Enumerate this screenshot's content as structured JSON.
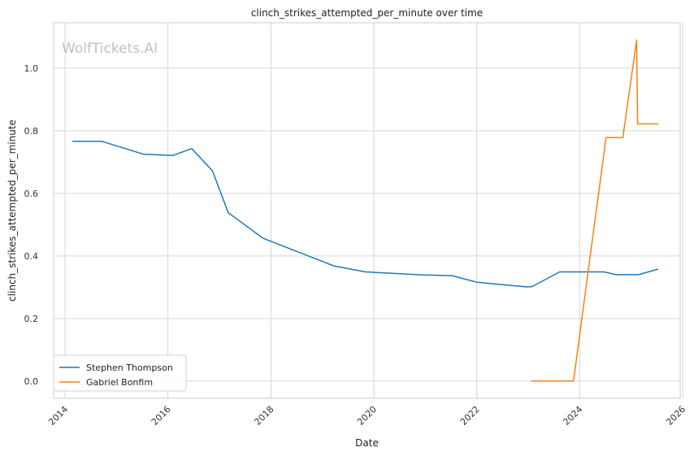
{
  "chart_data": {
    "type": "line",
    "title": "clinch_strikes_attempted_per_minute over time",
    "xlabel": "Date",
    "ylabel": "clinch_strikes_attempted_per_minute",
    "watermark": "WolfTickets.AI",
    "xlim": [
      "2013-10-12",
      "2025-12-14"
    ],
    "ylim": [
      -0.055,
      1.145
    ],
    "x_ticks": [
      "2014-01-01",
      "2016-01-01",
      "2018-01-01",
      "2020-01-01",
      "2022-01-01",
      "2024-01-01",
      "2026-01-01"
    ],
    "x_tick_labels": [
      "2014",
      "2016",
      "2018",
      "2020",
      "2022",
      "2024",
      "2026"
    ],
    "y_ticks": [
      0.0,
      0.2,
      0.4,
      0.6,
      0.8,
      1.0
    ],
    "y_tick_labels": [
      "0.0",
      "0.2",
      "0.4",
      "0.6",
      "0.8",
      "1.0"
    ],
    "grid": true,
    "legend_position": "lower-left",
    "series": [
      {
        "name": "Stephen Thompson",
        "color": "#1f77b4",
        "points": [
          {
            "x": "2014-02-22",
            "y": 0.766
          },
          {
            "x": "2014-09-20",
            "y": 0.766
          },
          {
            "x": "2015-07-11",
            "y": 0.725
          },
          {
            "x": "2016-02-06",
            "y": 0.721
          },
          {
            "x": "2016-06-18",
            "y": 0.743
          },
          {
            "x": "2016-11-12",
            "y": 0.672
          },
          {
            "x": "2017-03-04",
            "y": 0.538
          },
          {
            "x": "2017-11-04",
            "y": 0.457
          },
          {
            "x": "2019-03-23",
            "y": 0.368
          },
          {
            "x": "2019-11-02",
            "y": 0.349
          },
          {
            "x": "2020-12-19",
            "y": 0.339
          },
          {
            "x": "2021-07-10",
            "y": 0.337
          },
          {
            "x": "2022-01-01",
            "y": 0.316
          },
          {
            "x": "2022-12-17",
            "y": 0.301
          },
          {
            "x": "2023-01-28",
            "y": 0.302
          },
          {
            "x": "2023-08-12",
            "y": 0.349
          },
          {
            "x": "2024-06-22",
            "y": 0.349
          },
          {
            "x": "2024-09-14",
            "y": 0.34
          },
          {
            "x": "2025-02-22",
            "y": 0.34
          },
          {
            "x": "2025-07-12",
            "y": 0.358
          }
        ]
      },
      {
        "name": "Gabriel Bonfim",
        "color": "#ff7f0e",
        "points": [
          {
            "x": "2023-01-21",
            "y": 0.0
          },
          {
            "x": "2023-11-18",
            "y": 0.0
          },
          {
            "x": "2024-07-06",
            "y": 0.778
          },
          {
            "x": "2024-11-02",
            "y": 0.778
          },
          {
            "x": "2025-02-08",
            "y": 1.09
          },
          {
            "x": "2025-02-15",
            "y": 0.822
          },
          {
            "x": "2025-07-12",
            "y": 0.822
          }
        ]
      }
    ]
  }
}
